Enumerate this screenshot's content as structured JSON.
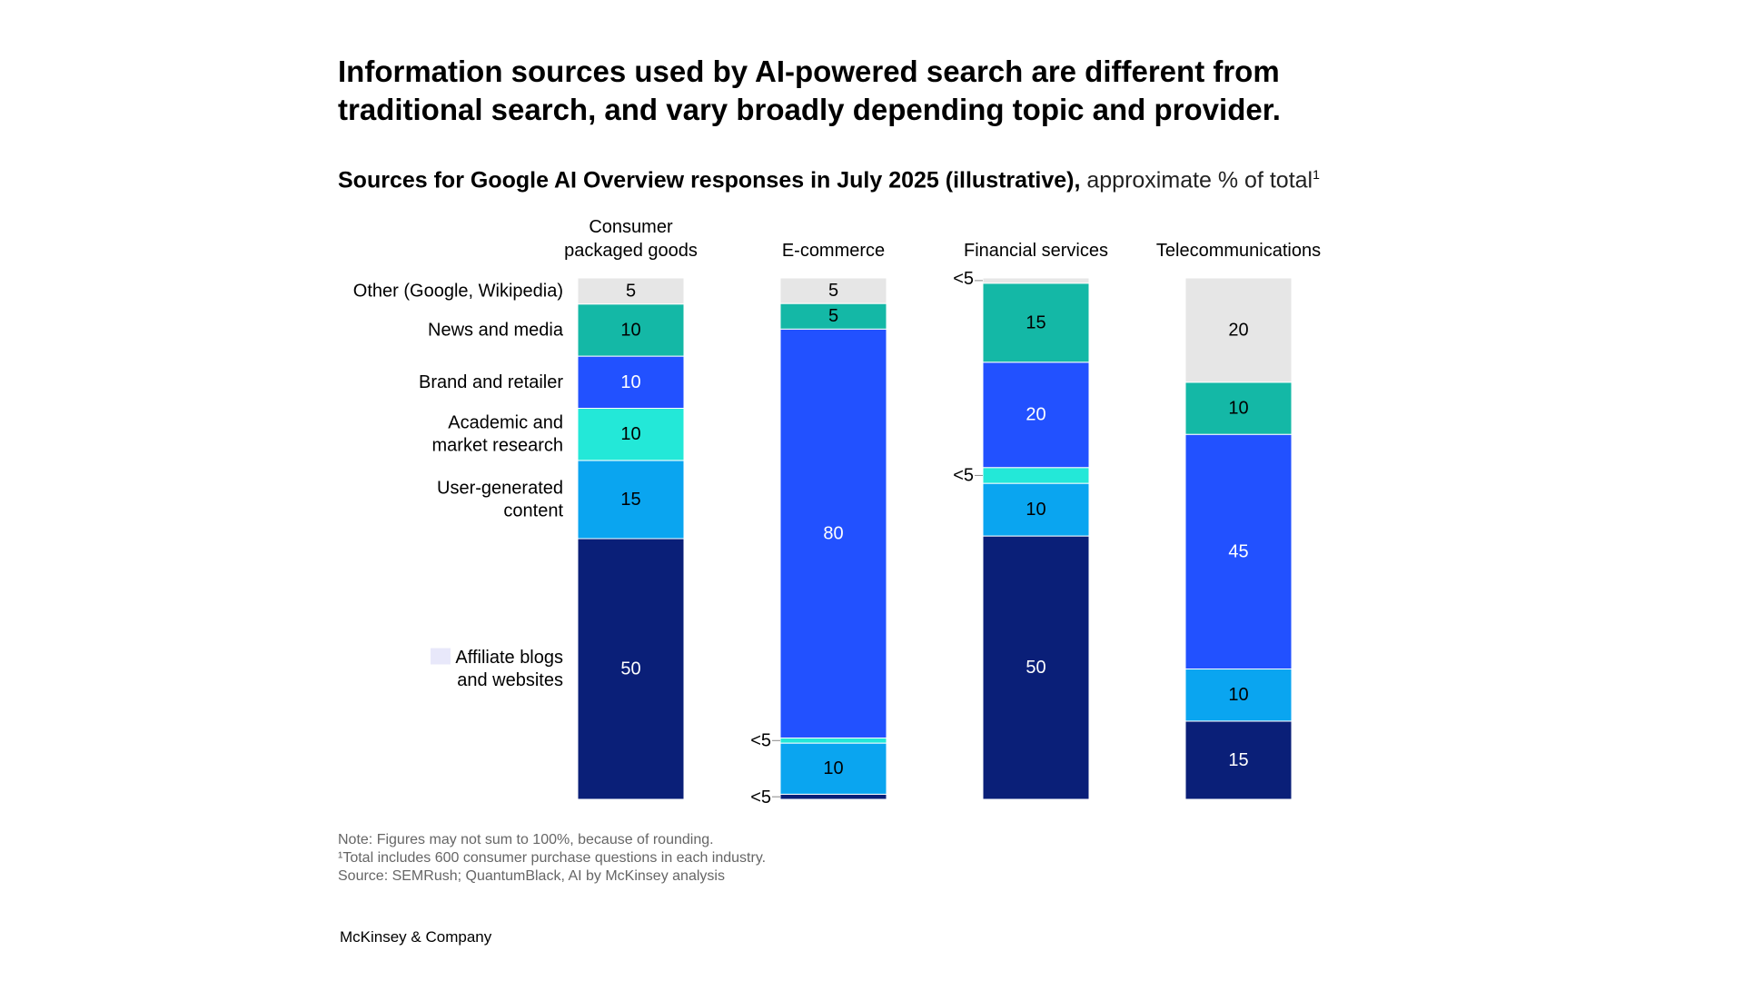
{
  "title": "Information sources used by AI-powered search are different from traditional search, and vary broadly depending topic and provider.",
  "subtitle_bold": "Sources for Google AI Overview responses in July 2025 (illustrative),",
  "subtitle_regular": " approximate % of total",
  "subtitle_footnote_mark": "1",
  "notes": [
    "Note: Figures may not sum to 100%, because of rounding.",
    "¹Total includes 600 consumer purchase questions in each industry.",
    "Source: SEMRush; QuantumBlack, AI by McKinsey analysis"
  ],
  "brand": "McKinsey & Company",
  "chart_data": {
    "type": "bar",
    "stacked": true,
    "unit": "approximate % of total",
    "categories": [
      [
        "Consumer",
        "packaged goods"
      ],
      [
        "E-commerce"
      ],
      [
        "Financial services"
      ],
      [
        "Telecommunications"
      ]
    ],
    "series": [
      {
        "name": "Affiliate blogs and websites",
        "label_lines": [
          "Affiliate blogs",
          "and websites"
        ],
        "color": "#0a1f78",
        "values": [
          50,
          1,
          50,
          15
        ],
        "labels": [
          "50",
          "<5",
          "50",
          "15"
        ]
      },
      {
        "name": "User-generated content",
        "label_lines": [
          "User-generated",
          "content"
        ],
        "color": "#0aa5f0",
        "values": [
          15,
          10,
          10,
          10
        ],
        "labels": [
          "15",
          "10",
          "10",
          "10"
        ]
      },
      {
        "name": "Academic and market research",
        "label_lines": [
          "Academic and",
          "market research"
        ],
        "color": "#23e8d8",
        "values": [
          10,
          1,
          3,
          0
        ],
        "labels": [
          "10",
          "<5",
          "<5",
          ""
        ]
      },
      {
        "name": "Brand and retailer",
        "label_lines": [
          "Brand and retailer"
        ],
        "color": "#2251ff",
        "values": [
          10,
          80,
          20,
          45
        ],
        "labels": [
          "10",
          "80",
          "20",
          "45"
        ]
      },
      {
        "name": "News and media",
        "label_lines": [
          "News and media"
        ],
        "color": "#14b8a6",
        "values": [
          10,
          5,
          15,
          10
        ],
        "labels": [
          "10",
          "5",
          "15",
          "10"
        ]
      },
      {
        "name": "Other (Google, Wikipedia)",
        "label_lines": [
          "Other (Google, Wikipedia)"
        ],
        "color": "#e6e6e6",
        "values": [
          5,
          5,
          1,
          20
        ],
        "labels": [
          "5",
          "5",
          "<5",
          "20"
        ]
      }
    ],
    "legend": "left-inline",
    "grid": false
  }
}
